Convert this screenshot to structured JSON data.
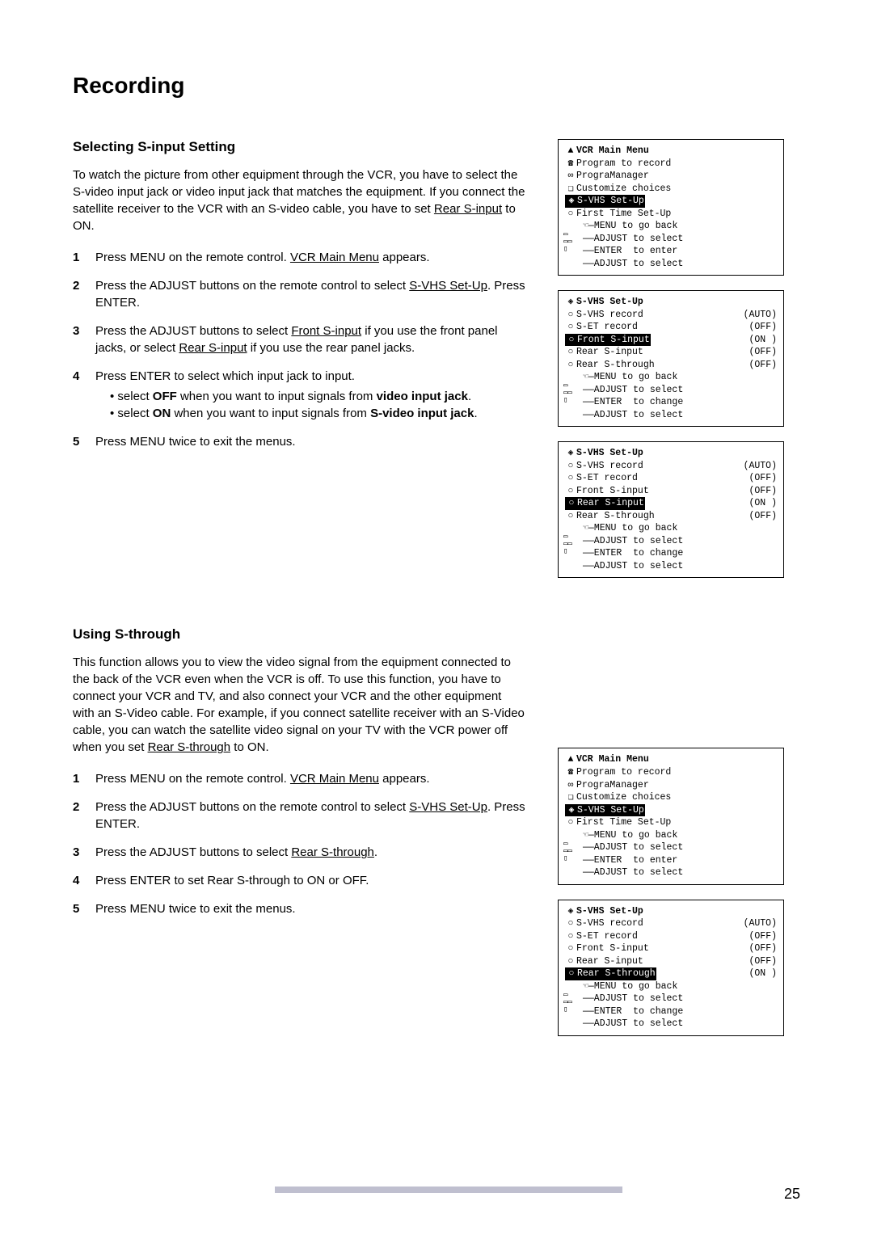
{
  "page": {
    "title": "Recording",
    "number": "25"
  },
  "section1": {
    "heading": "Selecting S-input Setting",
    "intro_pre": "To watch the picture from other equipment through the VCR, you have to select the S-video input jack or video input jack that matches the equipment. If you connect the satellite receiver to the VCR with an S-video cable, you have to set ",
    "intro_ul": "Rear S-input",
    "intro_post": " to ON.",
    "step1_a": "Press MENU on the remote control. ",
    "step1_ul": "VCR Main Menu",
    "step1_b": " appears.",
    "step2_a": "Press the ADJUST buttons on the remote control to select ",
    "step2_ul": "S-VHS Set-Up",
    "step2_b": ". Press ENTER.",
    "step3_a": "Press the ADJUST buttons to select ",
    "step3_ul1": "Front S-input",
    "step3_mid": " if you use the front panel jacks, or select ",
    "step3_ul2": "Rear S-input",
    "step3_b": " if you use the rear panel jacks.",
    "step4_a": "Press ENTER to select which input jack to input.",
    "step4_sub1_a": "select ",
    "step4_sub1_bold1": "OFF",
    "step4_sub1_mid": " when you want to input signals from ",
    "step4_sub1_bold2": "video input jack",
    "step4_sub1_end": ".",
    "step4_sub2_a": "select ",
    "step4_sub2_bold1": "ON",
    "step4_sub2_mid": " when you want to input signals from ",
    "step4_sub2_bold2": "S-video input jack",
    "step4_sub2_end": ".",
    "step5": "Press MENU twice to exit the menus."
  },
  "section2": {
    "heading": "Using S-through",
    "intro_pre": "This function allows you to view the video signal from the equipment connected to the back of the VCR even when the VCR is off. To use this function, you have to connect your VCR and TV, and also connect your VCR and the other equipment with an S-Video cable. For example, if you connect satellite receiver with an S-Video cable, you can watch the satellite video signal on your TV with the VCR power off when you set ",
    "intro_ul": "Rear S-through",
    "intro_post": " to ON.",
    "step1_a": "Press MENU on the remote control. ",
    "step1_ul": "VCR Main Menu",
    "step1_b": " appears.",
    "step2_a": "Press the ADJUST buttons on the remote control to select ",
    "step2_ul": "S-VHS Set-Up",
    "step2_b": ". Press ENTER.",
    "step3_a": "Press the ADJUST buttons to select ",
    "step3_ul": "Rear S-through",
    "step3_b": ".",
    "step4": "Press ENTER to set Rear S-through to ON or OFF.",
    "step5": "Press MENU twice to exit the menus."
  },
  "menus": {
    "main": {
      "title": "VCR Main Menu",
      "items": [
        "Program to record",
        "PrograManager",
        "Customize choices",
        "S-VHS Set-Up",
        "First Time Set-Up"
      ],
      "instr": [
        "MENU to go back",
        "ADJUST to select",
        "ENTER  to enter",
        "ADJUST to select"
      ]
    },
    "svhs_front": {
      "title": "S-VHS Set-Up",
      "rows": [
        {
          "label": "S-VHS record",
          "val": "(AUTO)"
        },
        {
          "label": "S-ET record",
          "val": "(OFF)"
        },
        {
          "label": "Front S-input",
          "val": "(ON )",
          "hl": true
        },
        {
          "label": "Rear S-input",
          "val": "(OFF)"
        },
        {
          "label": "Rear S-through",
          "val": "(OFF)"
        }
      ],
      "instr": [
        "MENU to go back",
        "ADJUST to select",
        "ENTER  to change",
        "ADJUST to select"
      ]
    },
    "svhs_rear": {
      "title": "S-VHS Set-Up",
      "rows": [
        {
          "label": "S-VHS record",
          "val": "(AUTO)"
        },
        {
          "label": "S-ET record",
          "val": "(OFF)"
        },
        {
          "label": "Front S-input",
          "val": "(OFF)"
        },
        {
          "label": "Rear S-input",
          "val": "(ON )",
          "hl": true
        },
        {
          "label": "Rear S-through",
          "val": "(OFF)"
        }
      ],
      "instr": [
        "MENU to go back",
        "ADJUST to select",
        "ENTER  to change",
        "ADJUST to select"
      ]
    },
    "svhs_through": {
      "title": "S-VHS Set-Up",
      "rows": [
        {
          "label": "S-VHS record",
          "val": "(AUTO)"
        },
        {
          "label": "S-ET record",
          "val": "(OFF)"
        },
        {
          "label": "Front S-input",
          "val": "(OFF)"
        },
        {
          "label": "Rear S-input",
          "val": "(OFF)"
        },
        {
          "label": "Rear S-through",
          "val": "(ON )",
          "hl": true
        }
      ],
      "instr": [
        "MENU to go back",
        "ADJUST to select",
        "ENTER  to change",
        "ADJUST to select"
      ]
    }
  }
}
